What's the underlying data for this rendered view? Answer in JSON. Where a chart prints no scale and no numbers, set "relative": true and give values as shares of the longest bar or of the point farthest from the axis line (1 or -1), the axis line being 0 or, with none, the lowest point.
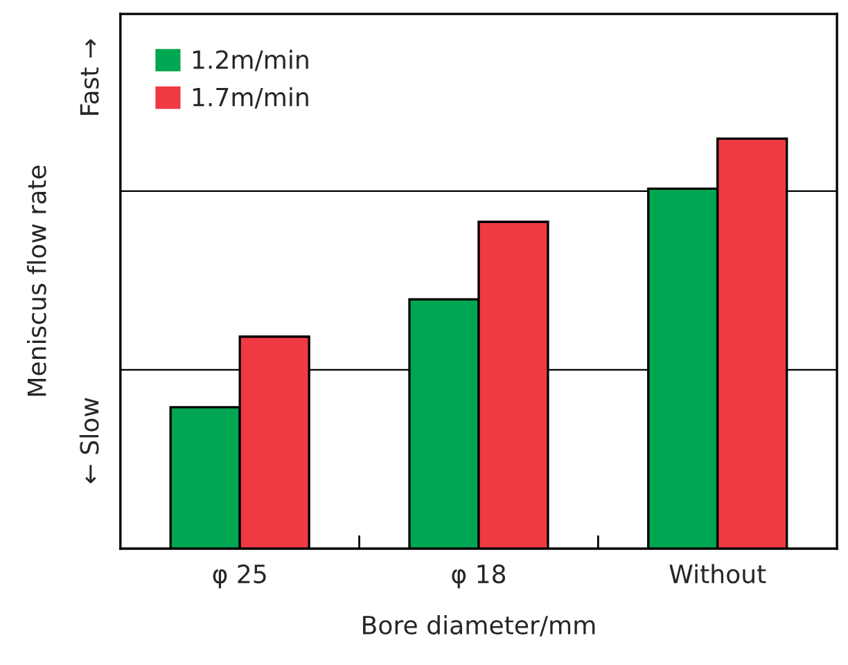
{
  "chart_data": {
    "type": "bar",
    "relative": true,
    "xlabel": "Bore diameter/mm",
    "ylabel": "Meniscus flow rate",
    "categories": [
      "φ 25",
      "φ 18",
      "Without"
    ],
    "series": [
      {
        "name": "1.2m/min",
        "color": "#00a651",
        "values": [
          0.345,
          0.608,
          0.878
        ]
      },
      {
        "name": "1.7m/min",
        "color": "#ef3a43",
        "values": [
          0.517,
          0.797,
          1.0
        ]
      }
    ],
    "ref_lines": [
      {
        "axis": "y",
        "value": 0.436,
        "color": "#000000"
      },
      {
        "axis": "y",
        "value": 0.872,
        "color": "#000000"
      }
    ],
    "annotations": [
      "← Slow",
      "Fast →"
    ],
    "legend": "top left",
    "grid": false
  }
}
